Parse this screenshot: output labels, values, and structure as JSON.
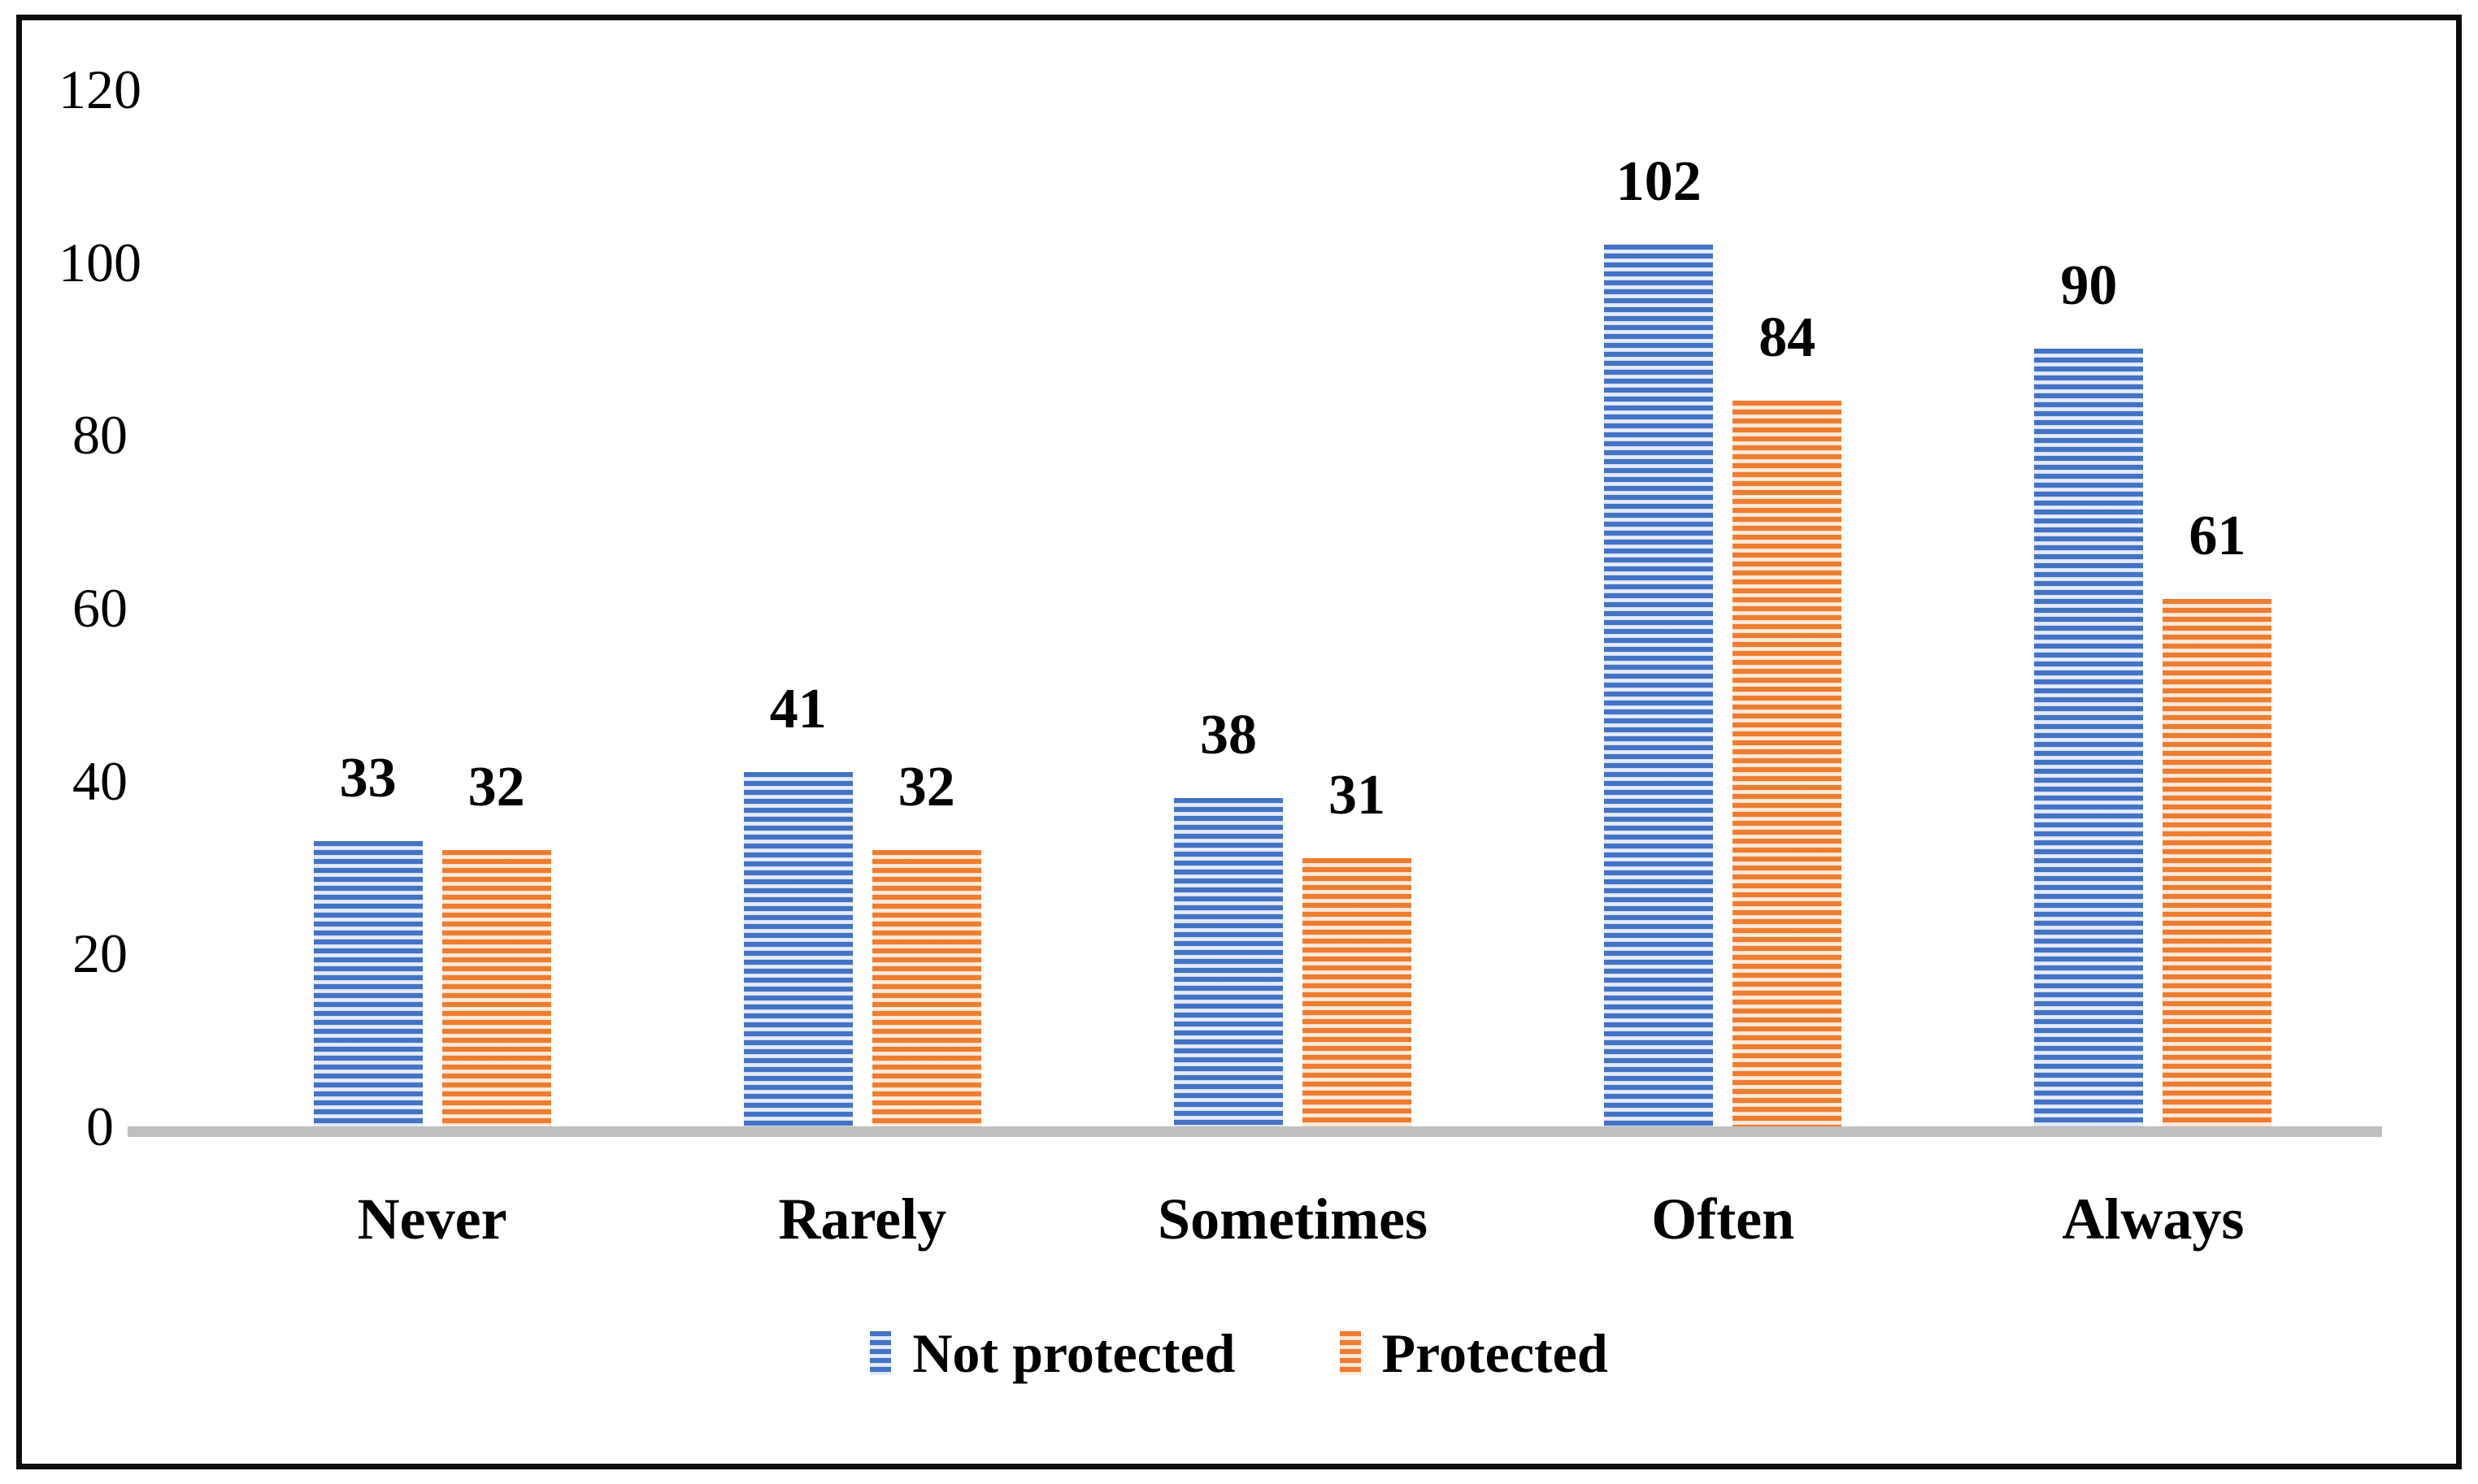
{
  "chart_data": {
    "type": "bar",
    "title": "",
    "categories": [
      "Never",
      "Rarely",
      "Sometimes",
      "Often",
      "Always"
    ],
    "series": [
      {
        "name": "Not protected",
        "values": [
          33,
          41,
          38,
          102,
          90
        ],
        "color": "#4472C4",
        "stripe_light": "#ccd8f0",
        "stripe_lighter": "#eef2fb"
      },
      {
        "name": "Protected",
        "values": [
          32,
          32,
          31,
          84,
          61
        ],
        "color": "#ED7D31",
        "stripe_light": "#f8d9c0",
        "stripe_lighter": "#fdf0e5"
      }
    ],
    "y_axis": {
      "min": 0,
      "max": 120,
      "tick_step": 20,
      "ticks": [
        0,
        20,
        40,
        60,
        80,
        100,
        120
      ]
    },
    "x_axis": {
      "labels": [
        "Never",
        "Rarely",
        "Sometimes",
        "Often",
        "Always"
      ],
      "line_color": "#BFBFBF"
    },
    "legend": {
      "position": "bottom",
      "entries": [
        "Not protected",
        "Protected"
      ]
    },
    "data_labels": true,
    "grid": false,
    "bar_pattern": "horizontal-stripes",
    "plot_background": "#FFFFFF",
    "frame_border_color": "#0D0D0D"
  }
}
